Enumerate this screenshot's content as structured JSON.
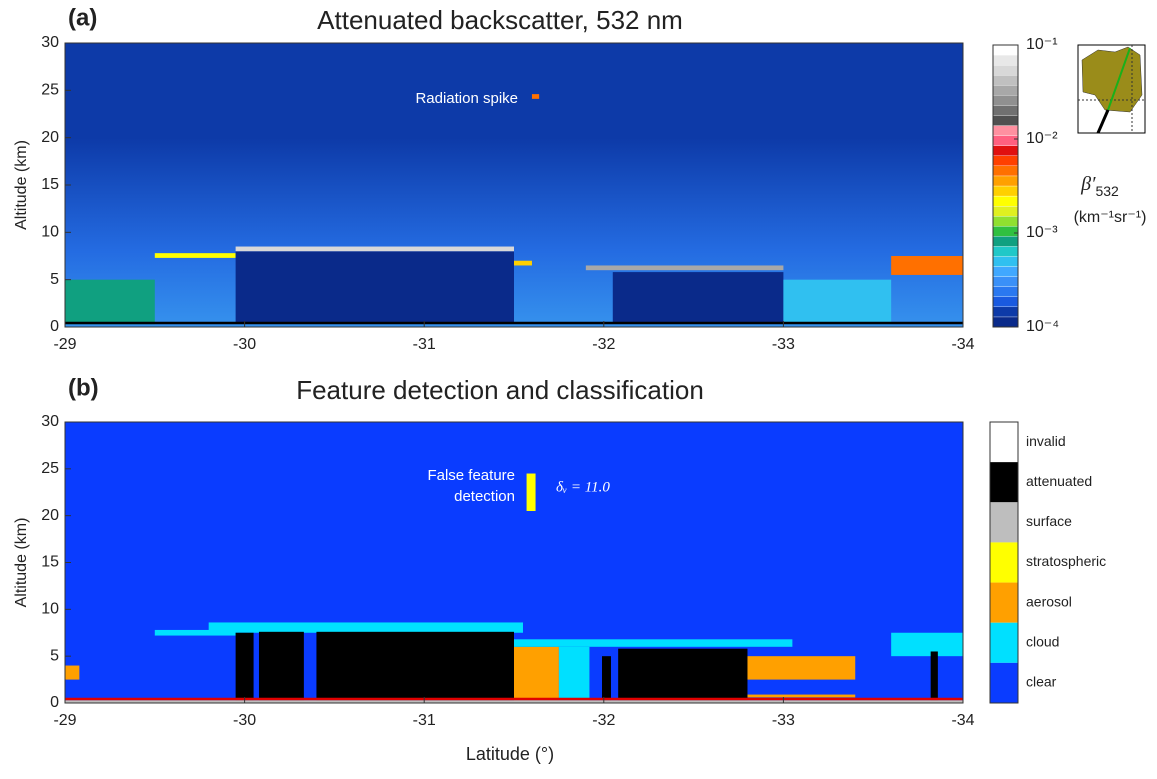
{
  "chart_data": [
    {
      "type": "heatmap",
      "panel_label": "(a)",
      "title": "Attenuated backscatter, 532 nm",
      "ylabel": "Altitude (km)",
      "xlim": [
        -29,
        -34
      ],
      "ylim": [
        0,
        30
      ],
      "xticks": [
        -29,
        -30,
        -31,
        -32,
        -33,
        -34
      ],
      "yticks": [
        0,
        5,
        10,
        15,
        20,
        25,
        30
      ],
      "features": [
        {
          "lat": [
            -29,
            -29.5
          ],
          "alt": [
            0.3,
            5
          ],
          "value": 0.0008
        },
        {
          "lat": [
            -29.5,
            -29.95
          ],
          "alt": [
            7.3,
            7.8
          ],
          "value": 0.002
        },
        {
          "lat": [
            -29.95,
            -31.5
          ],
          "alt": [
            0.5,
            8
          ],
          "value": 0.00011
        },
        {
          "lat": [
            -29.95,
            -31.5
          ],
          "alt": [
            8,
            8.5
          ],
          "value": 0.05
        },
        {
          "lat": [
            -31.5,
            -31.6
          ],
          "alt": [
            6.5,
            7
          ],
          "value": 0.003
        },
        {
          "lat": [
            -31.9,
            -33
          ],
          "alt": [
            6,
            6.5
          ],
          "value": 0.03
        },
        {
          "lat": [
            -32.05,
            -33
          ],
          "alt": [
            0.5,
            5.8
          ],
          "value": 0.00011
        },
        {
          "lat": [
            -33,
            -33.6
          ],
          "alt": [
            0.3,
            5
          ],
          "value": 0.0005
        },
        {
          "lat": [
            -33.6,
            -34
          ],
          "alt": [
            5.5,
            7.5
          ],
          "value": 0.005
        },
        {
          "lat": [
            -31.6,
            -31.64
          ],
          "alt": [
            24.1,
            24.6
          ],
          "value": 0.005
        }
      ],
      "annotations": [
        "Radiation spike"
      ],
      "colorbar": {
        "scale": "log",
        "lim": [
          0.0001,
          0.1
        ],
        "ticks": [
          {
            "value": 0.1,
            "label": "10⁻¹"
          },
          {
            "value": 0.01,
            "label": "10⁻²"
          },
          {
            "value": 0.001,
            "label": "10⁻³"
          },
          {
            "value": 0.0001,
            "label": "10⁻⁴"
          }
        ],
        "colors": [
          "#0a2a8a",
          "#0d3aa8",
          "#1a5ae0",
          "#2a78f0",
          "#3a90f8",
          "#40a8ff",
          "#30c0f0",
          "#20c8c8",
          "#10a080",
          "#30c040",
          "#90e030",
          "#e0f020",
          "#ffff00",
          "#ffd000",
          "#ffa000",
          "#ff7000",
          "#ff4000",
          "#e01010",
          "#ff6080",
          "#ff90a0",
          "#505050",
          "#707070",
          "#909090",
          "#a8a8a8",
          "#c0c0c0",
          "#d8d8d8",
          "#e8e8e8",
          "#ffffff"
        ],
        "symbol": "β′",
        "subscript": "532",
        "units": "(km⁻¹sr⁻¹)"
      }
    },
    {
      "type": "classification",
      "panel_label": "(b)",
      "title": "Feature detection and classification",
      "ylabel": "Altitude (km)",
      "xlabel": "Latitude (°)",
      "xlim": [
        -29,
        -34
      ],
      "ylim": [
        0,
        30
      ],
      "xticks": [
        -29,
        -30,
        -31,
        -32,
        -33,
        -34
      ],
      "yticks": [
        0,
        5,
        10,
        15,
        20,
        25,
        30
      ],
      "classes": [
        {
          "name": "invalid",
          "color": "#ffffff"
        },
        {
          "name": "attenuated",
          "color": "#000000"
        },
        {
          "name": "surface",
          "color": "#bebebe"
        },
        {
          "name": "stratospheric",
          "color": "#ffff00"
        },
        {
          "name": "aerosol",
          "color": "#ffa000"
        },
        {
          "name": "cloud",
          "color": "#00e0ff"
        },
        {
          "name": "clear",
          "color": "#0a3cff"
        }
      ],
      "features": [
        {
          "lat": [
            -29,
            -29.08
          ],
          "alt": [
            2.5,
            4
          ],
          "class": 4
        },
        {
          "lat": [
            -29.5,
            -29.95
          ],
          "alt": [
            7.2,
            7.8
          ],
          "class": 5
        },
        {
          "lat": [
            -29.8,
            -31.55
          ],
          "alt": [
            7.5,
            8.6
          ],
          "class": 5
        },
        {
          "lat": [
            -29.95,
            -30.05
          ],
          "alt": [
            0.3,
            7.5
          ],
          "class": 1
        },
        {
          "lat": [
            -30.08,
            -30.33
          ],
          "alt": [
            0.3,
            7.6
          ],
          "class": 1
        },
        {
          "lat": [
            -30.4,
            -31.5
          ],
          "alt": [
            0.3,
            7.6
          ],
          "class": 1
        },
        {
          "lat": [
            -31.5,
            -31.75
          ],
          "alt": [
            0.3,
            6
          ],
          "class": 4
        },
        {
          "lat": [
            -31.5,
            -33.05
          ],
          "alt": [
            6,
            6.8
          ],
          "class": 5
        },
        {
          "lat": [
            -31.75,
            -31.92
          ],
          "alt": [
            0.3,
            6
          ],
          "class": 5
        },
        {
          "lat": [
            -31.99,
            -32.04
          ],
          "alt": [
            0.3,
            5
          ],
          "class": 1
        },
        {
          "lat": [
            -32.08,
            -32.8
          ],
          "alt": [
            0.3,
            5.8
          ],
          "class": 1
        },
        {
          "lat": [
            -32.8,
            -33.4
          ],
          "alt": [
            2.5,
            5
          ],
          "class": 4
        },
        {
          "lat": [
            -32.8,
            -33.4
          ],
          "alt": [
            0.6,
            0.9
          ],
          "class": 4
        },
        {
          "lat": [
            -33.6,
            -34
          ],
          "alt": [
            5,
            7.5
          ],
          "class": 5
        },
        {
          "lat": [
            -33.82,
            -33.86
          ],
          "alt": [
            0.3,
            5.5
          ],
          "class": 1
        },
        {
          "lat": [
            -29,
            -34
          ],
          "alt": [
            0,
            0.3
          ],
          "class": 2
        },
        {
          "lat": [
            -31.57,
            -31.62
          ],
          "alt": [
            20.5,
            24.5
          ],
          "class": 3
        }
      ],
      "annotations": [
        "False feature",
        "detection",
        "δᵥ = 11.0"
      ]
    }
  ]
}
